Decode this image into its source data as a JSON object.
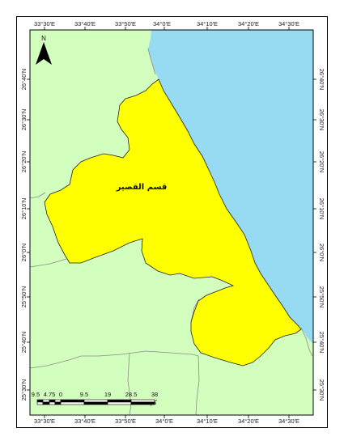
{
  "map": {
    "colors": {
      "land": "#d3ffbe",
      "sea": "#97dbf2",
      "region": "#ffff00",
      "boundary": "#222222",
      "district_lines": "#8a8a8a"
    },
    "region_label": "قسم القصير",
    "north_arrow": {
      "letter": "N",
      "icon": "north-arrow-icon"
    },
    "grid": {
      "top_labels": [
        "33°30'E",
        "33°40'E",
        "33°50'E",
        "34°0'E",
        "34°10'E",
        "34°20'E",
        "34°30'E"
      ],
      "bottom_labels": [
        "33°30'E",
        "33°40'E",
        "33°50'E",
        "34°0'E",
        "34°10'E",
        "34°20'E",
        "34°30'E"
      ],
      "left_labels": [
        "26°40'N",
        "26°30'N",
        "26°20'N",
        "26°10'N",
        "26°0'N",
        "25°50'N",
        "25°40'N",
        "25°30'N"
      ],
      "right_labels": [
        "26°40'N",
        "26°30'N",
        "26°20'N",
        "26°10'N",
        "26°0'N",
        "25°50'N",
        "25°40'N",
        "25°30'N"
      ]
    },
    "scale_bar": {
      "labels": [
        "9.5",
        "4.75",
        "0",
        "9.5",
        "19",
        "28.5",
        "38"
      ],
      "unit": "كم"
    }
  }
}
